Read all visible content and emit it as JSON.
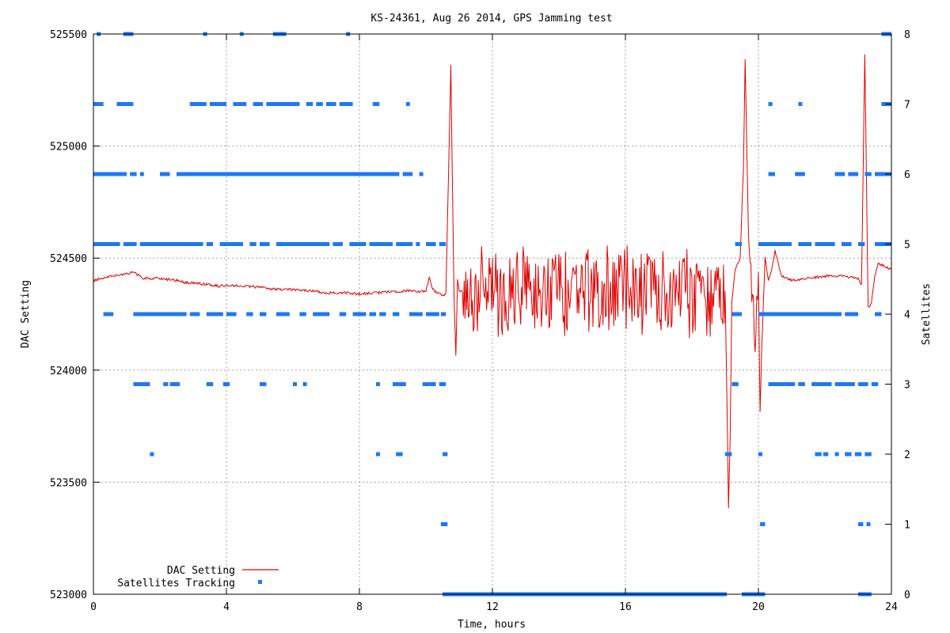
{
  "chart_data": {
    "type": "line",
    "title": "KS-24361, Aug 26 2014, GPS Jamming test",
    "xlabel": "Time, hours",
    "ylabel": "DAC Setting",
    "y2label": "Satellites",
    "xlim": [
      0,
      24
    ],
    "ylim": [
      523000,
      525500
    ],
    "y2lim": [
      0,
      8
    ],
    "x_ticks": [
      0,
      4,
      8,
      12,
      16,
      20,
      24
    ],
    "x_tick_labels": [
      "0",
      "4",
      "8",
      "12",
      "16",
      "20",
      "24"
    ],
    "y_ticks": [
      523000,
      523500,
      524000,
      524500,
      525000,
      525500
    ],
    "y_tick_labels": [
      "523000",
      "523500",
      "524000",
      "524500",
      "525000",
      "525500"
    ],
    "y2_ticks": [
      0,
      1,
      2,
      3,
      4,
      5,
      6,
      7,
      8
    ],
    "y2_tick_labels": [
      "0",
      "1",
      "2",
      "3",
      "4",
      "5",
      "6",
      "7",
      "8"
    ],
    "grid": true,
    "legend_position": "bottom-left",
    "series": [
      {
        "name": "DAC Setting",
        "axis": "left",
        "style": "line",
        "color": "#e00000",
        "x": [
          0,
          0.5,
          1.0,
          1.2,
          1.5,
          2.0,
          2.5,
          2.8,
          3.0,
          3.5,
          3.8,
          4.0,
          4.5,
          5.0,
          5.5,
          6.0,
          6.5,
          7.0,
          7.5,
          8.0,
          8.5,
          9.0,
          9.5,
          10.0,
          10.1,
          10.2,
          10.4,
          10.5,
          10.6,
          10.75,
          10.8,
          10.85,
          10.9,
          10.95,
          11.0,
          11.05,
          11.1,
          11.15,
          11.2,
          19.0,
          19.05,
          19.1,
          19.15,
          19.2,
          19.3,
          19.45,
          19.55,
          19.6,
          19.7,
          19.8,
          19.9,
          20.0,
          20.05,
          20.1,
          20.2,
          20.3,
          20.4,
          20.5,
          20.7,
          21.0,
          21.5,
          22.0,
          22.5,
          23.0,
          23.1,
          23.2,
          23.3,
          23.4,
          23.5,
          23.6,
          23.8,
          24.0
        ],
        "values": [
          524400,
          524420,
          524430,
          524440,
          524410,
          524410,
          524400,
          524390,
          524390,
          524380,
          524375,
          524380,
          524375,
          524370,
          524360,
          524360,
          524355,
          524345,
          524345,
          524340,
          524345,
          524350,
          524355,
          524350,
          524420,
          524360,
          524340,
          524330,
          524340,
          525360,
          524800,
          524300,
          524060,
          524400,
          524350,
          524350,
          524350,
          524350,
          524350,
          524350,
          523900,
          523390,
          523700,
          524300,
          524450,
          524500,
          524900,
          525390,
          524600,
          524350,
          524100,
          524400,
          523820,
          524100,
          524500,
          524400,
          524450,
          524530,
          524420,
          524400,
          524410,
          524420,
          524420,
          524410,
          524380,
          525410,
          524280,
          524300,
          524420,
          524480,
          524460,
          524450
        ]
      },
      {
        "name": "Satellites Tracking",
        "axis": "right",
        "style": "points",
        "color": "#1e78f0",
        "levels": [
          {
            "value": 0,
            "ranges": [
              [
                10.5,
                19.05
              ],
              [
                19.5,
                20.2
              ],
              [
                23.0,
                23.4
              ]
            ]
          },
          {
            "value": 1,
            "ranges": [
              [
                10.45,
                10.65
              ],
              [
                20.05,
                20.2
              ],
              [
                23.0,
                23.15
              ],
              [
                23.25,
                23.35
              ]
            ]
          },
          {
            "value": 2,
            "ranges": [
              [
                1.7,
                1.8
              ],
              [
                8.5,
                8.6
              ],
              [
                9.1,
                9.3
              ],
              [
                10.5,
                10.65
              ],
              [
                19.0,
                19.2
              ],
              [
                20.0,
                20.1
              ],
              [
                21.7,
                21.9
              ],
              [
                21.95,
                22.1
              ],
              [
                22.3,
                22.4
              ],
              [
                22.6,
                22.8
              ],
              [
                22.9,
                23.1
              ],
              [
                23.2,
                23.4
              ]
            ]
          },
          {
            "value": 3,
            "ranges": [
              [
                1.2,
                1.7
              ],
              [
                2.1,
                2.25
              ],
              [
                2.3,
                2.6
              ],
              [
                3.4,
                3.6
              ],
              [
                3.9,
                4.1
              ],
              [
                5.0,
                5.2
              ],
              [
                6.0,
                6.1
              ],
              [
                6.3,
                6.4
              ],
              [
                8.5,
                8.6
              ],
              [
                9.0,
                9.2
              ],
              [
                9.2,
                9.4
              ],
              [
                9.9,
                10.1
              ],
              [
                10.1,
                10.3
              ],
              [
                10.4,
                10.6
              ],
              [
                19.2,
                19.4
              ],
              [
                20.3,
                20.5
              ],
              [
                20.5,
                20.8
              ],
              [
                20.8,
                21.1
              ],
              [
                21.2,
                21.4
              ],
              [
                21.6,
                22.2
              ],
              [
                22.3,
                22.9
              ],
              [
                23.0,
                23.3
              ],
              [
                23.4,
                23.6
              ]
            ]
          },
          {
            "value": 4,
            "ranges": [
              [
                0.3,
                0.6
              ],
              [
                1.2,
                2.8
              ],
              [
                2.9,
                3.2
              ],
              [
                3.4,
                3.9
              ],
              [
                4.0,
                4.3
              ],
              [
                4.6,
                4.8
              ],
              [
                5.0,
                5.2
              ],
              [
                5.5,
                5.9
              ],
              [
                6.2,
                6.4
              ],
              [
                6.6,
                7.1
              ],
              [
                7.4,
                7.6
              ],
              [
                7.8,
                8.2
              ],
              [
                8.3,
                8.5
              ],
              [
                8.6,
                8.8
              ],
              [
                9.0,
                9.2
              ],
              [
                9.5,
                9.9
              ],
              [
                10.0,
                10.4
              ],
              [
                10.45,
                10.6
              ],
              [
                19.2,
                19.5
              ],
              [
                20.0,
                22.5
              ],
              [
                22.6,
                23.0
              ],
              [
                23.5,
                23.7
              ]
            ]
          },
          {
            "value": 5,
            "ranges": [
              [
                0,
                0.8
              ],
              [
                0.9,
                1.3
              ],
              [
                1.4,
                3.3
              ],
              [
                3.4,
                3.6
              ],
              [
                3.8,
                4.5
              ],
              [
                4.7,
                4.9
              ],
              [
                5.0,
                5.3
              ],
              [
                5.5,
                7.1
              ],
              [
                7.2,
                7.5
              ],
              [
                7.7,
                8.2
              ],
              [
                8.3,
                9.0
              ],
              [
                9.1,
                9.6
              ],
              [
                9.7,
                9.8
              ],
              [
                10.0,
                10.3
              ],
              [
                10.4,
                10.6
              ],
              [
                19.3,
                19.5
              ],
              [
                20.0,
                21.0
              ],
              [
                21.2,
                21.6
              ],
              [
                21.7,
                22.3
              ],
              [
                22.5,
                22.8
              ],
              [
                23.0,
                23.2
              ],
              [
                23.5,
                24.0
              ]
            ]
          },
          {
            "value": 6,
            "ranges": [
              [
                0,
                1.0
              ],
              [
                1.1,
                1.3
              ],
              [
                1.4,
                1.5
              ],
              [
                2.0,
                2.3
              ],
              [
                2.5,
                9.2
              ],
              [
                9.3,
                9.6
              ],
              [
                9.8,
                9.9
              ],
              [
                20.3,
                20.5
              ],
              [
                21.1,
                21.4
              ],
              [
                22.3,
                22.6
              ],
              [
                22.7,
                23.0
              ],
              [
                23.2,
                23.4
              ],
              [
                23.5,
                24.0
              ]
            ]
          },
          {
            "value": 7,
            "ranges": [
              [
                0,
                0.3
              ],
              [
                0.7,
                1.2
              ],
              [
                2.9,
                3.4
              ],
              [
                3.5,
                4.0
              ],
              [
                4.2,
                4.6
              ],
              [
                4.8,
                5.1
              ],
              [
                5.2,
                6.2
              ],
              [
                6.4,
                6.6
              ],
              [
                6.7,
                6.9
              ],
              [
                7.0,
                7.3
              ],
              [
                7.4,
                7.8
              ],
              [
                8.4,
                8.6
              ],
              [
                9.4,
                9.5
              ],
              [
                20.3,
                20.4
              ],
              [
                21.2,
                21.3
              ],
              [
                23.7,
                24.0
              ]
            ]
          },
          {
            "value": 8,
            "ranges": [
              [
                0.1,
                0.2
              ],
              [
                0.9,
                1.2
              ],
              [
                3.3,
                3.4
              ],
              [
                4.4,
                4.5
              ],
              [
                5.4,
                5.8
              ],
              [
                7.6,
                7.7
              ],
              [
                23.7,
                24.0
              ]
            ]
          }
        ]
      }
    ]
  }
}
